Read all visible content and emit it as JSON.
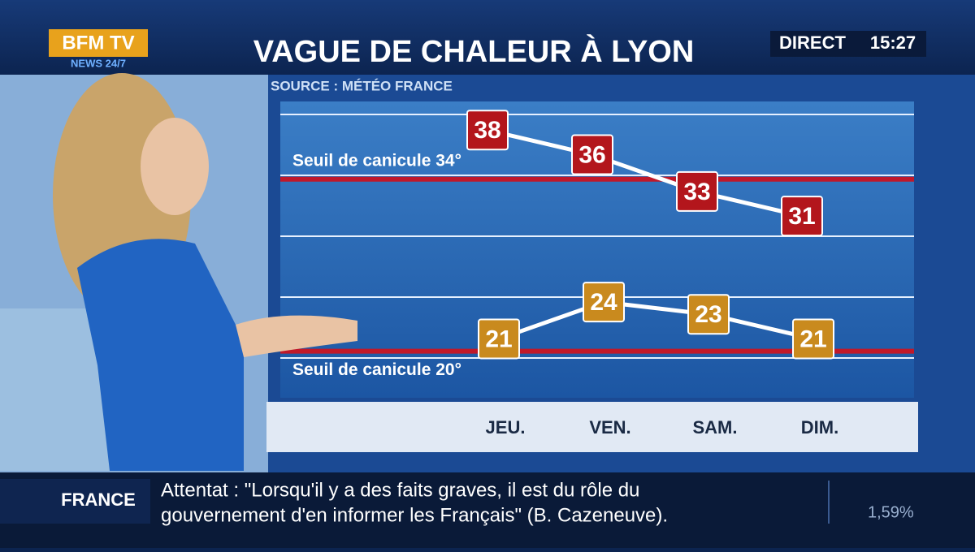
{
  "header": {
    "logo": "BFM TV",
    "logo_sub": "NEWS 24/7",
    "title": "VAGUE DE CHALEUR À LYON",
    "live": "DIRECT",
    "time": "15:27"
  },
  "chart_data": {
    "type": "line",
    "subtitle": "SOURCE : MÉTÉO FRANCE",
    "categories": [
      "JEU.",
      "VEN.",
      "SAM.",
      "DIM."
    ],
    "series": [
      {
        "color": "#b3161c",
        "values": [
          38,
          36,
          33,
          31
        ]
      },
      {
        "color": "#c98a1e",
        "values": [
          21,
          24,
          23,
          21
        ]
      }
    ],
    "thresholds": [
      {
        "label": "Seuil de canicule 34°",
        "value": 34,
        "color": "#c0182a"
      },
      {
        "label": "Seuil de canicule 20°",
        "value": 20,
        "color": "#c0182a"
      }
    ],
    "ylim": [
      17,
      40
    ]
  },
  "ticker": {
    "section": "FRANCE",
    "headline": [
      "Attentat : \"Lorsqu'il y a des faits graves, il est du rôle du",
      "gouvernement d'en informer les Français\" (B. Cazeneuve)."
    ],
    "market": "1,59%"
  }
}
